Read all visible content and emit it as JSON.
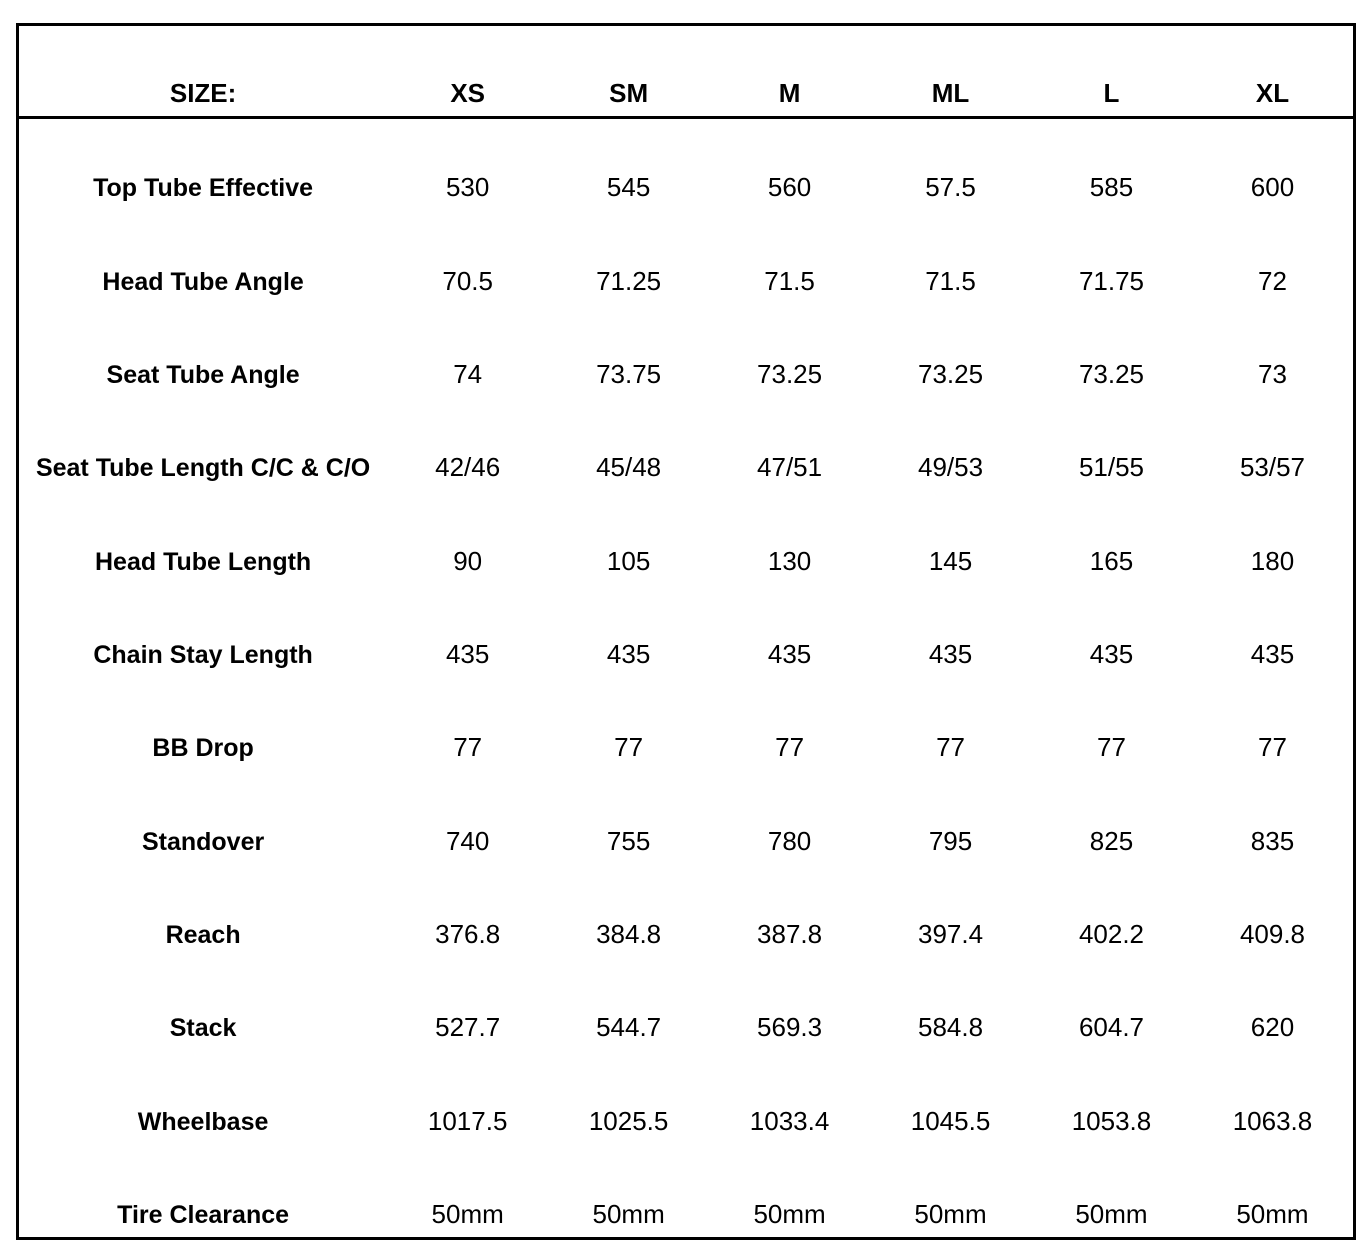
{
  "table": {
    "title": "bike-geometry-size-chart",
    "background_color": "#ffffff",
    "border_color": "#000000",
    "text_color": "#000000",
    "header": {
      "size_label": "SIZE:",
      "columns": [
        "XS",
        "SM",
        "M",
        "ML",
        "L",
        "XL"
      ]
    },
    "rows": [
      {
        "label": "Top Tube Effective",
        "values": [
          "530",
          "545",
          "560",
          "57.5",
          "585",
          "600"
        ]
      },
      {
        "label": "Head Tube Angle",
        "values": [
          "70.5",
          "71.25",
          "71.5",
          "71.5",
          "71.75",
          "72"
        ]
      },
      {
        "label": "Seat Tube Angle",
        "values": [
          "74",
          "73.75",
          "73.25",
          "73.25",
          "73.25",
          "73"
        ]
      },
      {
        "label": "Seat Tube Length C/C & C/O",
        "values": [
          "42/46",
          "45/48",
          "47/51",
          "49/53",
          "51/55",
          "53/57"
        ]
      },
      {
        "label": "Head Tube Length",
        "values": [
          "90",
          "105",
          "130",
          "145",
          "165",
          "180"
        ]
      },
      {
        "label": "Chain Stay Length",
        "values": [
          "435",
          "435",
          "435",
          "435",
          "435",
          "435"
        ]
      },
      {
        "label": "BB Drop",
        "values": [
          "77",
          "77",
          "77",
          "77",
          "77",
          "77"
        ]
      },
      {
        "label": "Standover",
        "values": [
          "740",
          "755",
          "780",
          "795",
          "825",
          "835"
        ]
      },
      {
        "label": "Reach",
        "values": [
          "376.8",
          "384.8",
          "387.8",
          "397.4",
          "402.2",
          "409.8"
        ]
      },
      {
        "label": "Stack",
        "values": [
          "527.7",
          "544.7",
          "569.3",
          "584.8",
          "604.7",
          "620"
        ]
      },
      {
        "label": "Wheelbase",
        "values": [
          "1017.5",
          "1025.5",
          "1033.4",
          "1045.5",
          "1053.8",
          "1063.8"
        ]
      },
      {
        "label": "Tire Clearance",
        "values": [
          "50mm",
          "50mm",
          "50mm",
          "50mm",
          "50mm",
          "50mm"
        ]
      }
    ]
  }
}
